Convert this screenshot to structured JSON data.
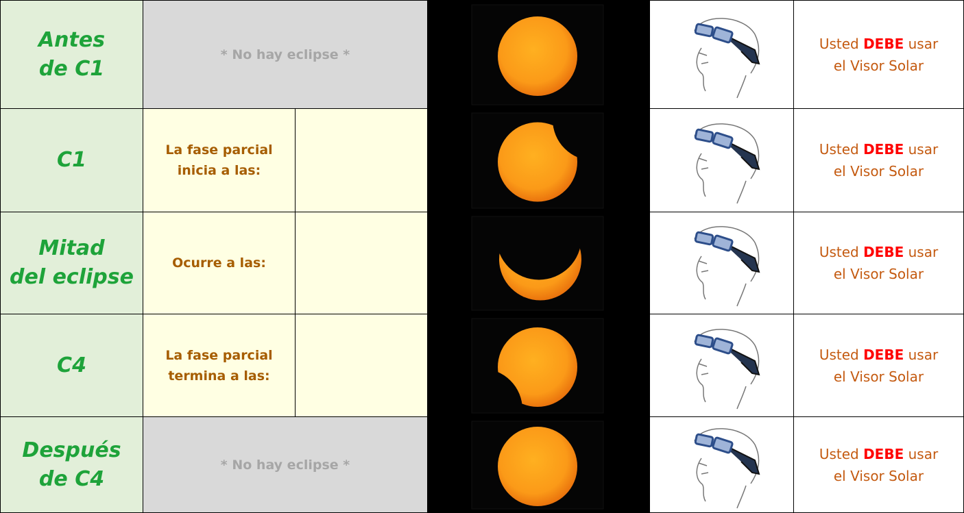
{
  "rows": [
    {
      "label": [
        "Antes",
        "de C1"
      ],
      "phase": [
        "* No hay eclipse *"
      ],
      "message": {
        "before": "Usted",
        "emphasis": "DEBE",
        "after": "usar",
        "line2": "el Visor Solar"
      }
    },
    {
      "label": [
        "C1"
      ],
      "phase": [
        "La fase parcial",
        "inicia a las:"
      ],
      "message": {
        "before": "Usted",
        "emphasis": "DEBE",
        "after": "usar",
        "line2": "el Visor Solar"
      }
    },
    {
      "label": [
        "Mitad",
        "del eclipse"
      ],
      "phase": [
        "Ocurre a las:"
      ],
      "message": {
        "before": "Usted",
        "emphasis": "DEBE",
        "after": "usar",
        "line2": "el Visor Solar"
      }
    },
    {
      "label": [
        "C4"
      ],
      "phase": [
        "La fase parcial",
        "termina a las:"
      ],
      "message": {
        "before": "Usted",
        "emphasis": "DEBE",
        "after": "usar",
        "line2": "el Visor Solar"
      }
    },
    {
      "label": [
        "Después",
        "de C4"
      ],
      "phase": [
        "* No hay eclipse *"
      ],
      "message": {
        "before": "Usted",
        "emphasis": "DEBE",
        "after": "usar",
        "line2": "el Visor Solar"
      }
    }
  ]
}
